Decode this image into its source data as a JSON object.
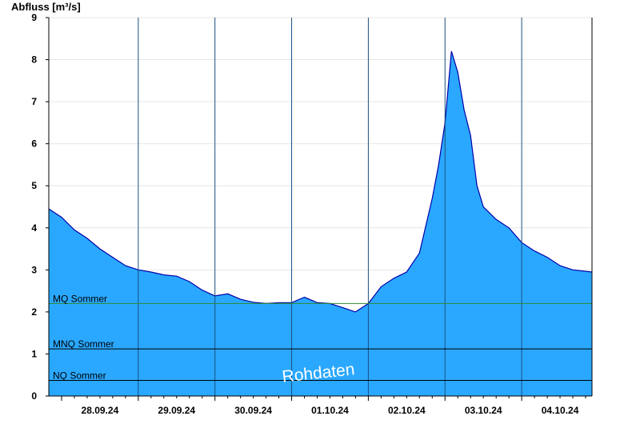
{
  "chart_data": {
    "type": "area",
    "ylabel": "Abfluss [m³/s]",
    "ylim": [
      0,
      9
    ],
    "yticks": [
      "0",
      "1",
      "2",
      "3",
      "4",
      "5",
      "6",
      "7",
      "8",
      "9"
    ],
    "xlim": [
      "2024-09-27T20:00",
      "2024-10-04T22:00"
    ],
    "xticks": [
      {
        "label": "28.09.24",
        "at": "2024-09-28T12:00"
      },
      {
        "label": "29.09.24",
        "at": "2024-09-29T12:00"
      },
      {
        "label": "30.09.24",
        "at": "2024-09-30T12:00"
      },
      {
        "label": "01.10.24",
        "at": "2024-10-01T12:00"
      },
      {
        "label": "02.10.24",
        "at": "2024-10-02T12:00"
      },
      {
        "label": "03.10.24",
        "at": "2024-10-03T12:00"
      },
      {
        "label": "04.10.24",
        "at": "2024-10-04T12:00"
      }
    ],
    "day_separators": [
      "2024-09-29T00:00",
      "2024-09-30T00:00",
      "2024-10-01T00:00",
      "2024-10-02T00:00",
      "2024-10-03T00:00",
      "2024-10-04T00:00"
    ],
    "grid": true,
    "fill_color": "#2aa8ff",
    "line_color": "#0000aa",
    "series": [
      {
        "x": [
          "2024-09-27T20:00",
          "2024-09-28T00:00",
          "2024-09-28T04:00",
          "2024-09-28T08:00",
          "2024-09-28T12:00",
          "2024-09-28T16:00",
          "2024-09-28T20:00",
          "2024-09-29T00:00",
          "2024-09-29T04:00",
          "2024-09-29T08:00",
          "2024-09-29T12:00",
          "2024-09-29T16:00",
          "2024-09-29T20:00",
          "2024-09-30T00:00",
          "2024-09-30T04:00",
          "2024-09-30T08:00",
          "2024-09-30T12:00",
          "2024-09-30T16:00",
          "2024-09-30T20:00",
          "2024-10-01T00:00",
          "2024-10-01T04:00",
          "2024-10-01T08:00",
          "2024-10-01T12:00",
          "2024-10-01T16:00",
          "2024-10-01T20:00",
          "2024-10-02T00:00",
          "2024-10-02T04:00",
          "2024-10-02T08:00",
          "2024-10-02T12:00",
          "2024-10-02T16:00",
          "2024-10-02T20:00",
          "2024-10-02T22:00",
          "2024-10-03T00:00",
          "2024-10-03T02:00",
          "2024-10-03T04:00",
          "2024-10-03T06:00",
          "2024-10-03T08:00",
          "2024-10-03T10:00",
          "2024-10-03T12:00",
          "2024-10-03T16:00",
          "2024-10-03T20:00",
          "2024-10-04T00:00",
          "2024-10-04T04:00",
          "2024-10-04T08:00",
          "2024-10-04T12:00",
          "2024-10-04T16:00",
          "2024-10-04T22:00"
        ],
        "y": [
          4.45,
          4.25,
          3.95,
          3.75,
          3.5,
          3.3,
          3.1,
          3.0,
          2.95,
          2.88,
          2.85,
          2.72,
          2.52,
          2.38,
          2.43,
          2.3,
          2.23,
          2.2,
          2.22,
          2.22,
          2.35,
          2.22,
          2.2,
          2.1,
          2.0,
          2.2,
          2.6,
          2.8,
          2.95,
          3.4,
          4.7,
          5.5,
          6.5,
          8.2,
          7.7,
          6.8,
          6.2,
          5.0,
          4.5,
          4.2,
          4.0,
          3.65,
          3.45,
          3.3,
          3.1,
          3.0,
          2.95
        ]
      }
    ],
    "reference_lines": [
      {
        "label": "MQ Sommer",
        "value": 2.2,
        "color": "#2e8b2e"
      },
      {
        "label": "MNQ Sommer",
        "value": 1.12,
        "color": "#000000"
      },
      {
        "label": "NQ Sommer",
        "value": 0.37,
        "color": "#000000"
      }
    ],
    "watermark": "Rohdaten"
  }
}
